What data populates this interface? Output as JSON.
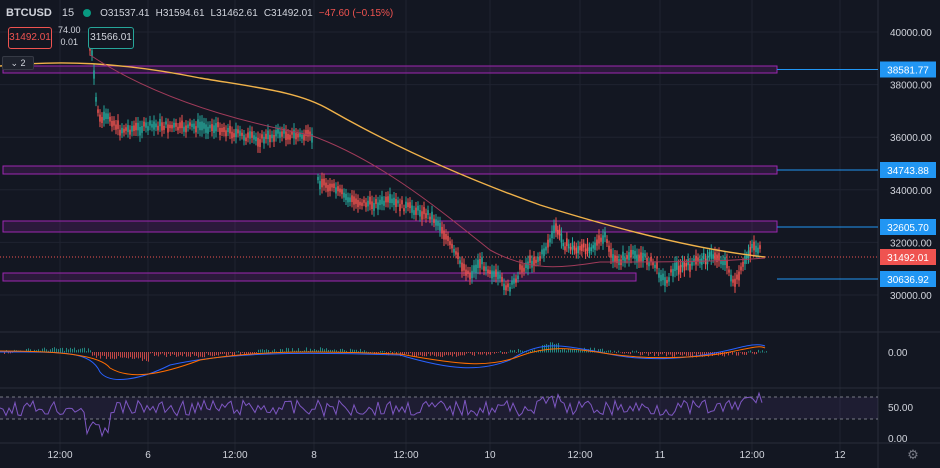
{
  "header": {
    "symbol": "BTCUSD",
    "timeframe": "15",
    "open": "O31537.41",
    "high": "H31594.61",
    "low": "L31462.61",
    "close": "C31492.01",
    "change": "−47.60 (−0.15%)",
    "sell_price": "31492.01",
    "buy_price": "31566.01",
    "spread_top": "74.00",
    "spread_bottom": "0.01",
    "collapse_label": "2"
  },
  "price_axis": {
    "ticks": [
      "40000.00",
      "38000.00",
      "36000.00",
      "34000.00",
      "32000.00",
      "30000.00"
    ],
    "level_labels": [
      "38581.77",
      "34743.88",
      "32605.70",
      "31492.01",
      "30636.92"
    ],
    "macd_tick": "0.00",
    "rsi_ticks": [
      "50.00",
      "0.00"
    ]
  },
  "time_axis": {
    "ticks": [
      "12:00",
      "6",
      "12:00",
      "8",
      "12:00",
      "10",
      "12:00",
      "11",
      "12:00",
      "12"
    ]
  },
  "colors": {
    "background": "#131722",
    "up": "#26a69a",
    "down": "#ef5350",
    "ma_slow": "#f0b24a",
    "ma_fast": "#a13b5a",
    "zone": "#9c27b0",
    "level_line": "#2196f3",
    "current_price": "#ef5350",
    "rsi": "#7e57c2",
    "macd": "#2962ff",
    "signal": "#ff6d00"
  },
  "icons": {
    "settings": "gear-icon"
  }
}
